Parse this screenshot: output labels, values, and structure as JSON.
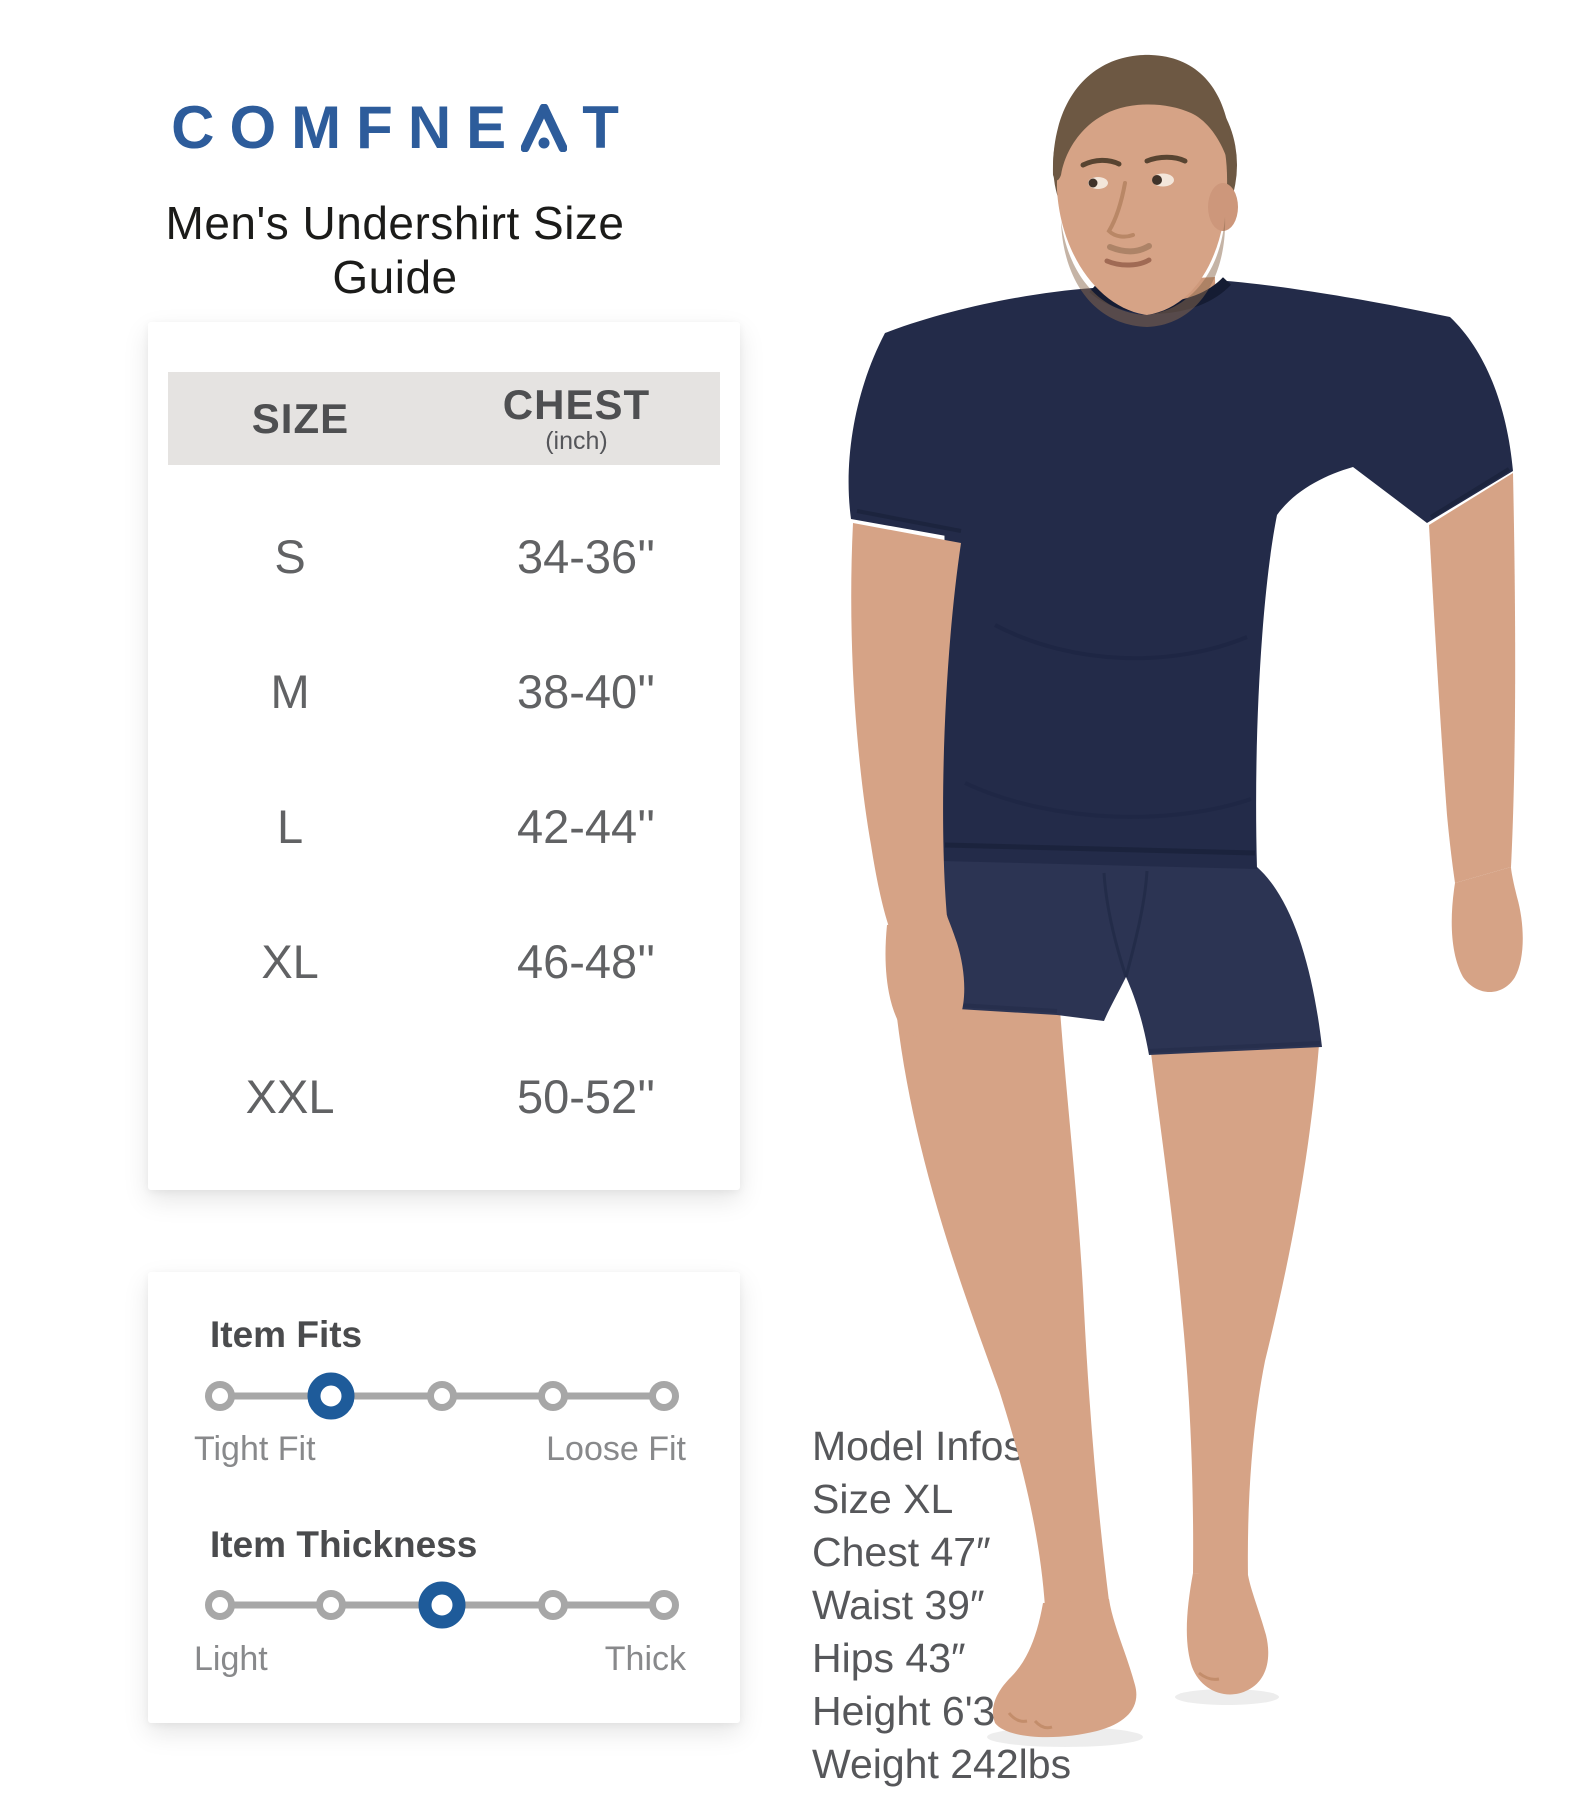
{
  "brand": {
    "logo_text": "COMFNEAT",
    "letters": [
      "C",
      "O",
      "M",
      "F",
      "N",
      "E",
      "A",
      "T"
    ],
    "logo_color": "#2d5c9b"
  },
  "page": {
    "title": "Men's Undershirt Size Guide"
  },
  "size_table": {
    "headers": {
      "col1": "SIZE",
      "col2": "CHEST",
      "col2_sub": "(inch)"
    },
    "rows": [
      {
        "size": "S",
        "chest": "34-36''"
      },
      {
        "size": "M",
        "chest": "38-40''"
      },
      {
        "size": "L",
        "chest": "42-44''"
      },
      {
        "size": "XL",
        "chest": "46-48''"
      },
      {
        "size": "XXL",
        "chest": "50-52''"
      }
    ]
  },
  "fit_panel": {
    "fits": {
      "title": "Item Fits",
      "left_label": "Tight Fit",
      "right_label": "Loose Fit",
      "positions": 5,
      "active_index": 2
    },
    "thickness": {
      "title": "Item Thickness",
      "left_label": "Light",
      "right_label": "Thick",
      "positions": 5,
      "active_index": 3
    }
  },
  "model_info": {
    "lines": [
      "Model Infos",
      "Size XL",
      "Chest 47″",
      "Waist 39″",
      "Hips 43″",
      "Height 6'3\"",
      "Weight 242lbs"
    ]
  },
  "colors": {
    "accent_blue": "#1e5b9a",
    "slider_gray": "#a7a7a7",
    "table_header_bg": "#e5e3e1",
    "shirt_navy": "#232b49",
    "boxer_navy": "#2c3453",
    "skin": "#d6a386",
    "hair_brown": "#6d5843"
  }
}
